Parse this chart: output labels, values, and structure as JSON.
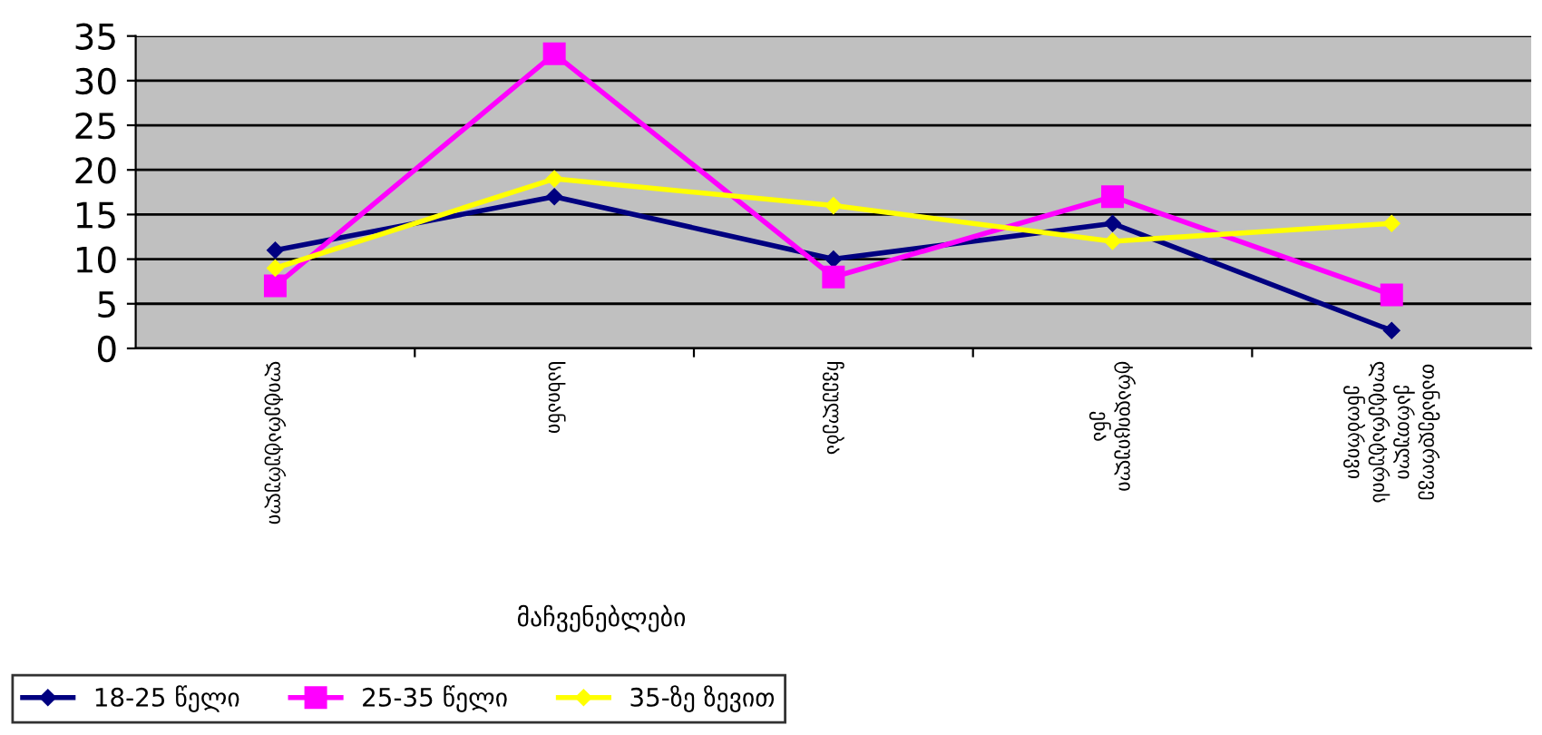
{
  "chart_data": {
    "type": "line",
    "xlabel": "მაჩვენებლები",
    "categories": [
      "ლიტერატურული",
      "სახიანი",
      "ჩვეულება",
      "ტრადიციული\nენა",
      "თანამედროვე\nქართული\nლიტერატურის\nენობრივი"
    ],
    "series": [
      {
        "name": "18-25 წელი",
        "color": "#000080",
        "values": [
          11,
          17,
          10,
          14,
          2
        ],
        "marker": "diamond"
      },
      {
        "name": "25-35 წელი",
        "color": "#ff00ff",
        "values": [
          7,
          33,
          8,
          17,
          6
        ],
        "marker": "square"
      },
      {
        "name": "35-ზე ზევით",
        "color": "#ffff00",
        "values": [
          9,
          19,
          16,
          12,
          14
        ],
        "marker": "diamond"
      }
    ],
    "ylim": [
      0,
      35
    ],
    "yticks": [
      0,
      5,
      10,
      15,
      20,
      25,
      30,
      35
    ],
    "grid": "y",
    "legend": "bottom left"
  }
}
